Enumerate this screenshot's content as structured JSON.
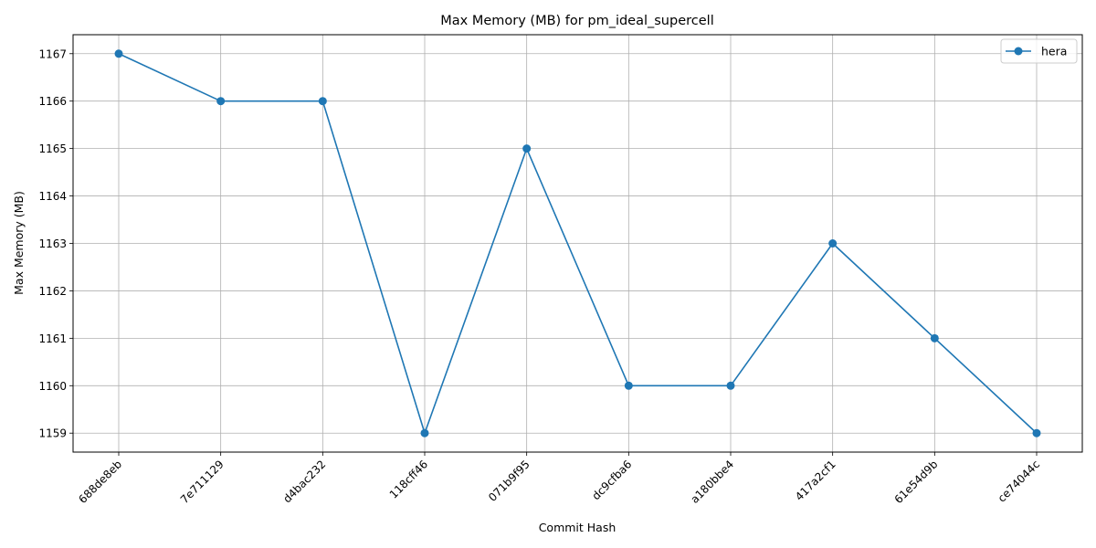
{
  "chart_data": {
    "type": "line",
    "title": "Max Memory (MB) for pm_ideal_supercell",
    "xlabel": "Commit Hash",
    "ylabel": "Max Memory (MB)",
    "categories": [
      "688de8eb",
      "7e711129",
      "d4bac232",
      "118cff46",
      "071b9f95",
      "dc9cfba6",
      "a180bbe4",
      "417a2cf1",
      "61e54d9b",
      "ce74044c"
    ],
    "series": [
      {
        "name": "hera",
        "values": [
          1167,
          1166,
          1166,
          1159,
          1165,
          1160,
          1160,
          1163,
          1161,
          1159
        ],
        "color": "#1f77b4"
      }
    ],
    "ylim": [
      1158.6,
      1167.4
    ],
    "yticks": [
      1159,
      1160,
      1161,
      1162,
      1163,
      1164,
      1165,
      1166,
      1167
    ],
    "grid": true,
    "legend_position": "top-right",
    "x_tick_rotation": 45
  }
}
